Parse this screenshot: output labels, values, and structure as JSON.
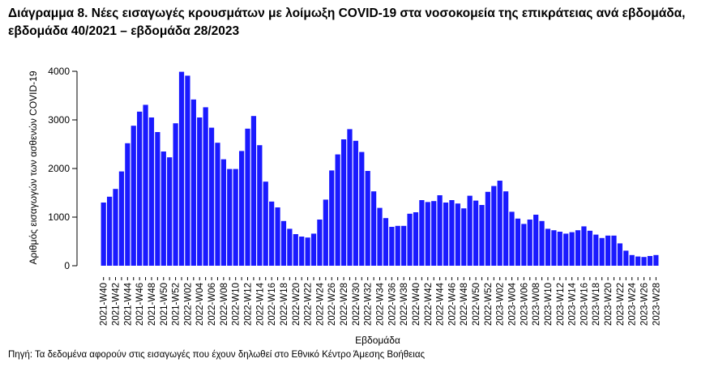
{
  "title": "Διάγραμμα 8. Νέες εισαγωγές κρουσμάτων με λοίμωξη COVID-19 στα νοσοκομεία της επικράτειας ανά εβδομάδα, εβδομάδα 40/2021 – εβδομάδα 28/2023",
  "source": "Πηγή: Τα δεδομένα αφορούν στις εισαγωγές που έχουν δηλωθεί στο Εθνικό Κέντρο Άμεσης Βοήθειας",
  "colors": {
    "bar": "#1a1aff",
    "axis": "#000000"
  },
  "chart_data": {
    "type": "bar",
    "xlabel": "Εβδομάδα",
    "ylabel": "Αριθμός εισαγωγών των ασθενών COVID-19",
    "ylim": [
      0,
      4000
    ],
    "yticks": [
      0,
      1000,
      2000,
      3000,
      4000
    ],
    "grid": false,
    "categories": [
      "2021-W40",
      "2021-W41",
      "2021-W42",
      "2021-W43",
      "2021-W44",
      "2021-W45",
      "2021-W46",
      "2021-W47",
      "2021-W48",
      "2021-W49",
      "2021-W50",
      "2021-W51",
      "2021-W52",
      "2022-W01",
      "2022-W02",
      "2022-W03",
      "2022-W04",
      "2022-W05",
      "2022-W06",
      "2022-W07",
      "2022-W08",
      "2022-W09",
      "2022-W10",
      "2022-W11",
      "2022-W12",
      "2022-W13",
      "2022-W14",
      "2022-W15",
      "2022-W16",
      "2022-W17",
      "2022-W18",
      "2022-W19",
      "2022-W20",
      "2022-W21",
      "2022-W22",
      "2022-W23",
      "2022-W24",
      "2022-W25",
      "2022-W26",
      "2022-W27",
      "2022-W28",
      "2022-W29",
      "2022-W30",
      "2022-W31",
      "2022-W32",
      "2022-W33",
      "2022-W34",
      "2022-W35",
      "2022-W36",
      "2022-W37",
      "2022-W38",
      "2022-W39",
      "2022-W40",
      "2022-W41",
      "2022-W42",
      "2022-W43",
      "2022-W44",
      "2022-W45",
      "2022-W46",
      "2022-W47",
      "2022-W48",
      "2022-W49",
      "2022-W50",
      "2022-W51",
      "2022-W52",
      "2023-W01",
      "2023-W02",
      "2023-W03",
      "2023-W04",
      "2023-W05",
      "2023-W06",
      "2023-W07",
      "2023-W08",
      "2023-W09",
      "2023-W10",
      "2023-W11",
      "2023-W12",
      "2023-W13",
      "2023-W14",
      "2023-W15",
      "2023-W16",
      "2023-W17",
      "2023-W18",
      "2023-W19",
      "2023-W20",
      "2023-W21",
      "2023-W22",
      "2023-W23",
      "2023-W24",
      "2023-W25",
      "2023-W26",
      "2023-W27",
      "2023-W28"
    ],
    "tick_labels": [
      "2021-W40",
      "2021-W42",
      "2021-W44",
      "2021-W46",
      "2021-W48",
      "2021-W50",
      "2021-W52",
      "2022-W02",
      "2022-W04",
      "2022-W06",
      "2022-W08",
      "2022-W10",
      "2022-W12",
      "2022-W14",
      "2022-W16",
      "2022-W18",
      "2022-W20",
      "2022-W22",
      "2022-W24",
      "2022-W26",
      "2022-W28",
      "2022-W30",
      "2022-W32",
      "2022-W34",
      "2022-W36",
      "2022-W38",
      "2022-W40",
      "2022-W42",
      "2022-W44",
      "2022-W46",
      "2022-W48",
      "2022-W50",
      "2022-W52",
      "2023-W02",
      "2023-W04",
      "2023-W06",
      "2023-W08",
      "2023-W10",
      "2023-W12",
      "2023-W14",
      "2023-W16",
      "2023-W18",
      "2023-W20",
      "2023-W22",
      "2023-W24",
      "2023-W26",
      "2023-W28"
    ],
    "values": [
      1300,
      1420,
      1580,
      1940,
      2520,
      2880,
      3170,
      3310,
      3050,
      2750,
      2350,
      2230,
      2930,
      3990,
      3910,
      3420,
      3050,
      3260,
      2840,
      2530,
      2190,
      1990,
      1990,
      2360,
      2820,
      3080,
      2480,
      1730,
      1320,
      1200,
      920,
      760,
      650,
      600,
      580,
      660,
      950,
      1360,
      1960,
      2290,
      2600,
      2810,
      2570,
      2340,
      1950,
      1530,
      1190,
      980,
      800,
      820,
      820,
      1070,
      1100,
      1350,
      1310,
      1330,
      1450,
      1300,
      1350,
      1280,
      1180,
      1440,
      1340,
      1250,
      1520,
      1640,
      1750,
      1530,
      1110,
      970,
      860,
      950,
      1050,
      920,
      760,
      730,
      700,
      660,
      690,
      730,
      810,
      720,
      640,
      570,
      620,
      620,
      460,
      310,
      220,
      190,
      180,
      200,
      220
    ]
  }
}
